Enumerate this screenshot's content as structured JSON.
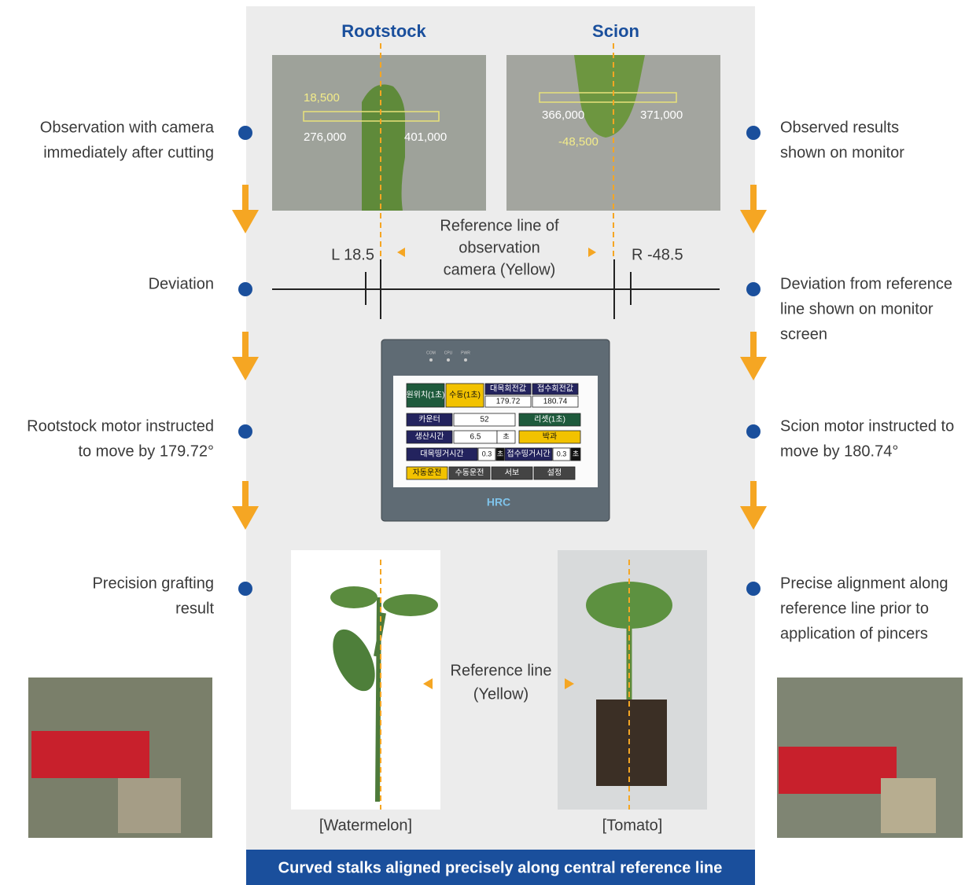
{
  "headings": {
    "rootstock": "Rootstock",
    "scion": "Scion"
  },
  "camera_views": {
    "rootstock": {
      "offset": "18,500",
      "left_edge": "276,000",
      "right_edge": "401,000"
    },
    "scion": {
      "left_edge": "366,000",
      "right_edge": "371,000",
      "offset": "-48,500"
    }
  },
  "reference_note_top": {
    "lines": [
      "Reference line of",
      "observation",
      "camera (Yellow)"
    ]
  },
  "deviation": {
    "left": "L 18.5",
    "right": "R -48.5"
  },
  "left_steps": [
    {
      "lines": [
        "Observation with camera",
        "immediately after cutting"
      ]
    },
    {
      "lines": [
        "Deviation"
      ]
    },
    {
      "lines": [
        "Rootstock motor instructed",
        "to move by 179.72°"
      ]
    },
    {
      "lines": [
        "Precision grafting",
        "result"
      ]
    }
  ],
  "right_steps": [
    {
      "lines": [
        "Observed results",
        "shown on monitor"
      ]
    },
    {
      "lines": [
        "Deviation from reference",
        "line shown on monitor",
        "screen"
      ]
    },
    {
      "lines": [
        "Scion motor instructed to",
        "move by 180.74°"
      ]
    },
    {
      "lines": [
        "Precise alignment along",
        "reference line prior to",
        "application of pincers"
      ]
    }
  ],
  "monitor": {
    "indicators": [
      "COM",
      "CPU",
      "PWR"
    ],
    "cells": [
      "원위치(1초)",
      "수동(1초)",
      "대목회전값",
      "접수회전값",
      "179.72",
      "180.74",
      "카운터",
      "52",
      "리셋(1초)",
      "생산시간",
      "6.5",
      "초",
      "박과",
      "대목띵거시간",
      "0.3",
      "초",
      "접수띵거시간",
      "0.3",
      "초",
      "자동운전",
      "수동운전",
      "서보",
      "설정"
    ],
    "logo": "HRC"
  },
  "reference_note_bottom": {
    "lines": [
      "Reference line",
      "(Yellow)"
    ]
  },
  "captions": [
    "[Watermelon]",
    "[Tomato]"
  ],
  "footer": "Curved stalks aligned precisely along central reference line"
}
